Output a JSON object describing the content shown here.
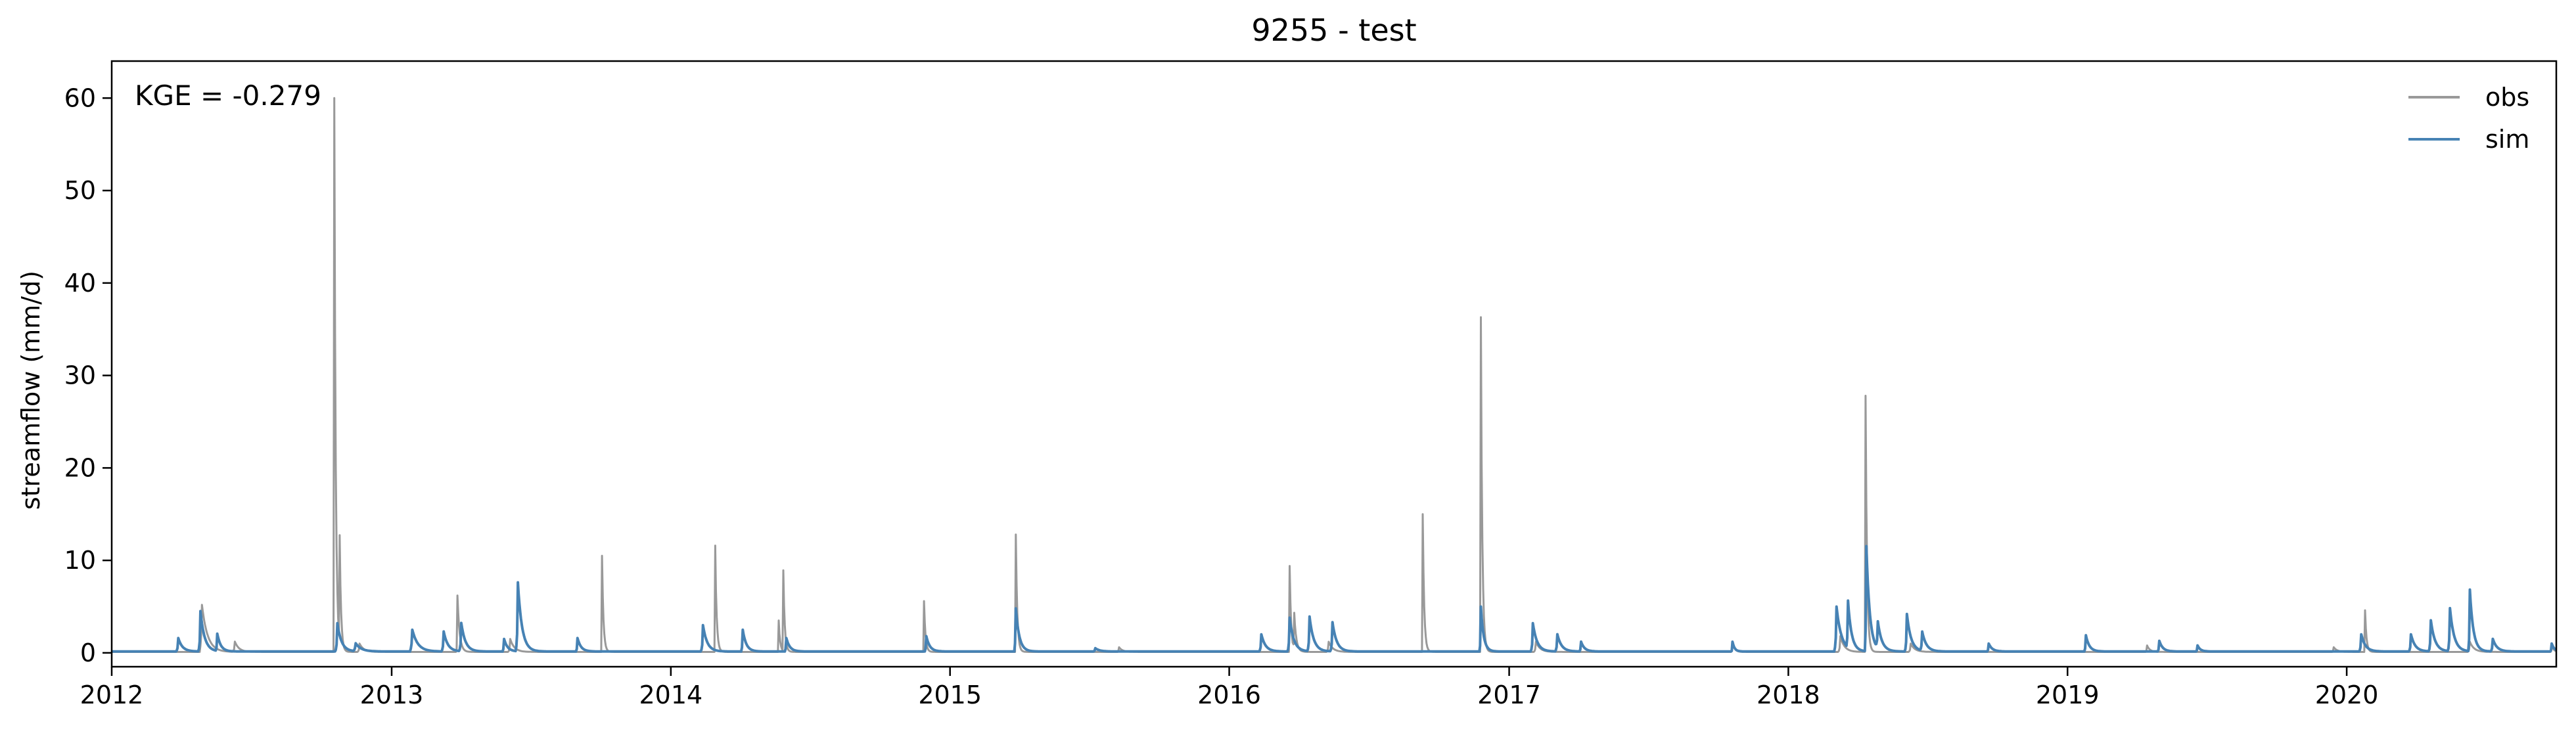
{
  "chart_data": {
    "type": "line",
    "title": "9255 - test",
    "ylabel": "streamflow (mm/d)",
    "xlabel": "",
    "annotation": "KGE = -0.279",
    "xlim": [
      "2012-01-01",
      "2020-10-01"
    ],
    "ylim": [
      -1.5,
      64
    ],
    "x_ticks": [
      "2012-01-01",
      "2013-01-01",
      "2014-01-01",
      "2015-01-01",
      "2016-01-01",
      "2017-01-01",
      "2018-01-01",
      "2019-01-01",
      "2020-01-01"
    ],
    "x_tick_labels": [
      "2012",
      "2013",
      "2014",
      "2015",
      "2016",
      "2017",
      "2018",
      "2019",
      "2020"
    ],
    "y_ticks": [
      0,
      10,
      20,
      30,
      40,
      50,
      60
    ],
    "grid": false,
    "legend_position": "top-right",
    "series": [
      {
        "name": "obs",
        "color": "#999999",
        "baseline": 0.1,
        "peaks": [
          [
            "2012-04-28",
            5.2,
            8
          ],
          [
            "2012-06-10",
            1.2,
            6
          ],
          [
            "2012-10-18",
            60.0,
            2
          ],
          [
            "2012-10-25",
            11.5,
            2
          ],
          [
            "2012-11-20",
            1.0,
            6
          ],
          [
            "2013-03-28",
            6.2,
            3
          ],
          [
            "2013-06-05",
            1.5,
            6
          ],
          [
            "2013-10-03",
            10.5,
            2
          ],
          [
            "2014-02-28",
            11.6,
            2
          ],
          [
            "2014-05-22",
            3.5,
            2
          ],
          [
            "2014-05-28",
            8.8,
            2
          ],
          [
            "2014-11-28",
            5.6,
            2
          ],
          [
            "2015-03-28",
            12.8,
            2
          ],
          [
            "2015-08-10",
            0.6,
            5
          ],
          [
            "2016-03-20",
            9.4,
            2
          ],
          [
            "2016-03-26",
            4.0,
            3
          ],
          [
            "2016-05-10",
            1.2,
            6
          ],
          [
            "2016-09-10",
            15.0,
            2
          ],
          [
            "2016-11-25",
            36.3,
            2
          ],
          [
            "2017-02-05",
            1.2,
            6
          ],
          [
            "2017-10-20",
            1.2,
            3
          ],
          [
            "2018-03-10",
            1.8,
            6
          ],
          [
            "2018-04-12",
            27.8,
            2
          ],
          [
            "2018-06-10",
            1.0,
            6
          ],
          [
            "2019-04-15",
            0.8,
            4
          ],
          [
            "2019-12-15",
            0.6,
            5
          ],
          [
            "2020-01-25",
            4.6,
            2
          ],
          [
            "2020-06-10",
            1.2,
            6
          ],
          [
            "2020-09-25",
            0.8,
            3
          ]
        ]
      },
      {
        "name": "sim",
        "color": "#4682b4",
        "baseline": 0.15,
        "peaks": [
          [
            "2012-03-28",
            1.6,
            6
          ],
          [
            "2012-04-26",
            4.5,
            6
          ],
          [
            "2012-05-18",
            2.0,
            5
          ],
          [
            "2012-10-22",
            3.2,
            6
          ],
          [
            "2012-11-15",
            1.0,
            8
          ],
          [
            "2013-01-28",
            2.5,
            8
          ],
          [
            "2013-03-10",
            2.3,
            6
          ],
          [
            "2013-04-02",
            3.2,
            6
          ],
          [
            "2013-05-28",
            1.5,
            5
          ],
          [
            "2013-06-15",
            7.6,
            6
          ],
          [
            "2013-09-01",
            1.6,
            5
          ],
          [
            "2014-02-12",
            3.0,
            6
          ],
          [
            "2014-04-05",
            2.5,
            5
          ],
          [
            "2014-06-01",
            1.6,
            5
          ],
          [
            "2014-12-01",
            1.8,
            5
          ],
          [
            "2015-03-28",
            4.8,
            5
          ],
          [
            "2015-07-10",
            0.5,
            6
          ],
          [
            "2016-02-12",
            2.0,
            6
          ],
          [
            "2016-03-20",
            3.8,
            6
          ],
          [
            "2016-04-15",
            3.9,
            6
          ],
          [
            "2016-05-15",
            3.3,
            6
          ],
          [
            "2016-11-25",
            5.0,
            4
          ],
          [
            "2017-02-01",
            3.2,
            6
          ],
          [
            "2017-03-05",
            2.0,
            6
          ],
          [
            "2017-04-05",
            1.2,
            5
          ],
          [
            "2017-10-20",
            1.2,
            3
          ],
          [
            "2018-03-05",
            5.0,
            7
          ],
          [
            "2018-03-20",
            5.2,
            5
          ],
          [
            "2018-04-13",
            11.5,
            5
          ],
          [
            "2018-04-28",
            3.0,
            6
          ],
          [
            "2018-06-05",
            4.2,
            6
          ],
          [
            "2018-06-25",
            2.2,
            6
          ],
          [
            "2018-09-20",
            1.0,
            5
          ],
          [
            "2019-01-25",
            1.9,
            5
          ],
          [
            "2019-05-01",
            1.3,
            5
          ],
          [
            "2019-06-20",
            0.8,
            4
          ],
          [
            "2020-01-20",
            2.0,
            6
          ],
          [
            "2020-03-25",
            2.0,
            6
          ],
          [
            "2020-04-20",
            3.5,
            6
          ],
          [
            "2020-05-15",
            4.8,
            6
          ],
          [
            "2020-06-10",
            6.8,
            5
          ],
          [
            "2020-07-10",
            1.5,
            6
          ],
          [
            "2020-09-25",
            1.0,
            4
          ]
        ]
      }
    ]
  }
}
